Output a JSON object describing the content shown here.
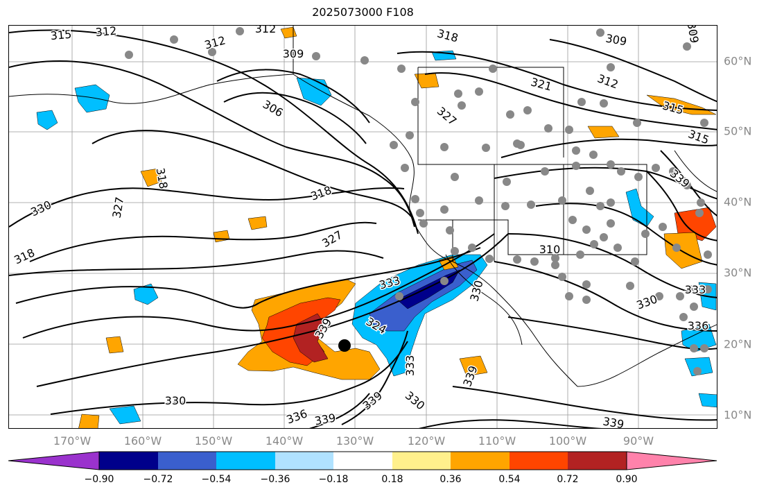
{
  "title": "2025073000 F108",
  "map": {
    "lon_labels": [
      "170°W",
      "160°W",
      "150°W",
      "140°W",
      "130°W",
      "120°W",
      "110°W",
      "100°W",
      "90°W"
    ],
    "lat_labels": [
      "60°N",
      "50°N",
      "40°N",
      "30°N",
      "20°N",
      "10°N"
    ],
    "contour_labels": [
      "315",
      "312",
      "312",
      "312",
      "309",
      "318",
      "309",
      "306",
      "321",
      "312",
      "315",
      "327",
      "315",
      "318",
      "318",
      "327",
      "330",
      "327",
      "318",
      "333",
      "324",
      "339",
      "310",
      "339",
      "330",
      "333",
      "330",
      "336",
      "339",
      "339",
      "330",
      "339",
      "333",
      "336",
      "339",
      "330",
      "309"
    ],
    "marker": "storm-center"
  },
  "colorbar": {
    "tick_labels": [
      "−0.90",
      "−0.72",
      "−0.54",
      "−0.36",
      "−0.18",
      "0.18",
      "0.36",
      "0.54",
      "0.72",
      "0.90"
    ],
    "colors": [
      "#9a32cd",
      "#00008b",
      "#3a5fcd",
      "#00bfff",
      "#b0e2ff",
      "#ffffff",
      "#fff08c",
      "#ffa500",
      "#ff4500",
      "#b22222",
      "#ff82ab"
    ]
  }
}
